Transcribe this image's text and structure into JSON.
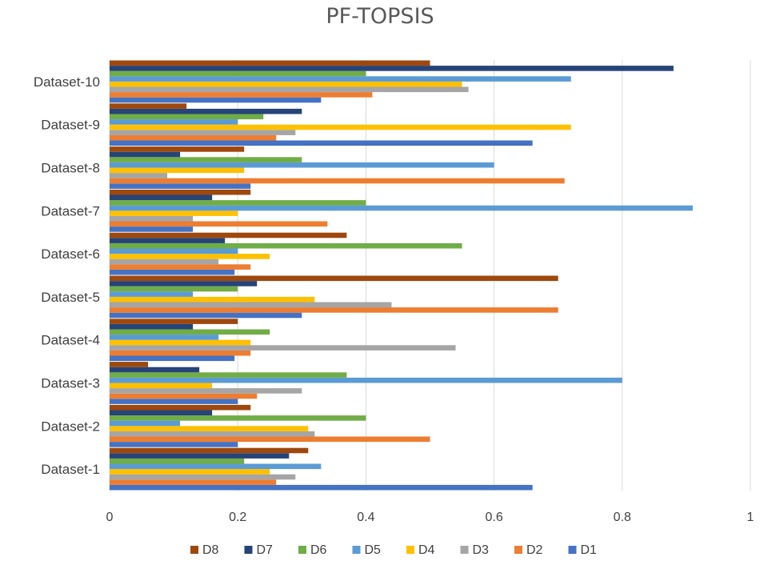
{
  "chart_data": {
    "type": "bar",
    "orientation": "horizontal",
    "title": "PF-TOPSIS",
    "categories": [
      "Dataset-1",
      "Dataset-2",
      "Dataset-3",
      "Dataset-4",
      "Dataset-5",
      "Dataset-6",
      "Dataset-7",
      "Dataset-8",
      "Dataset-9",
      "Dataset-10"
    ],
    "xlim": [
      0,
      1
    ],
    "xticks": [
      "0",
      "0.2",
      "0.4",
      "0.6",
      "0.8",
      "1"
    ],
    "xtick_values": [
      0,
      0.2,
      0.4,
      0.6,
      0.8,
      1
    ],
    "grid": true,
    "legend_position": "bottom",
    "series": [
      {
        "name": "D1",
        "color": "#4472C4",
        "values": [
          0.66,
          0.2,
          0.2,
          0.195,
          0.3,
          0.195,
          0.13,
          0.22,
          0.66,
          0.33
        ]
      },
      {
        "name": "D2",
        "color": "#ED7D31",
        "values": [
          0.26,
          0.5,
          0.23,
          0.22,
          0.7,
          0.22,
          0.34,
          0.71,
          0.26,
          0.41
        ]
      },
      {
        "name": "D3",
        "color": "#A5A5A5",
        "values": [
          0.29,
          0.32,
          0.3,
          0.54,
          0.44,
          0.17,
          0.13,
          0.09,
          0.29,
          0.56
        ]
      },
      {
        "name": "D4",
        "color": "#FFC000",
        "values": [
          0.25,
          0.31,
          0.16,
          0.22,
          0.32,
          0.25,
          0.2,
          0.21,
          0.72,
          0.55
        ]
      },
      {
        "name": "D5",
        "color": "#5B9BD5",
        "values": [
          0.33,
          0.11,
          0.8,
          0.17,
          0.13,
          0.2,
          0.91,
          0.6,
          0.2,
          0.72
        ]
      },
      {
        "name": "D6",
        "color": "#70AD47",
        "values": [
          0.21,
          0.4,
          0.37,
          0.25,
          0.2,
          0.55,
          0.4,
          0.3,
          0.24,
          0.4
        ]
      },
      {
        "name": "D7",
        "color": "#264478",
        "values": [
          0.28,
          0.16,
          0.14,
          0.13,
          0.23,
          0.18,
          0.16,
          0.11,
          0.3,
          0.88
        ]
      },
      {
        "name": "D8",
        "color": "#9E480E",
        "values": [
          0.31,
          0.22,
          0.06,
          0.2,
          0.7,
          0.37,
          0.22,
          0.21,
          0.12,
          0.5
        ]
      }
    ],
    "legend_order": [
      "D8",
      "D7",
      "D6",
      "D5",
      "D4",
      "D3",
      "D2",
      "D1"
    ]
  }
}
